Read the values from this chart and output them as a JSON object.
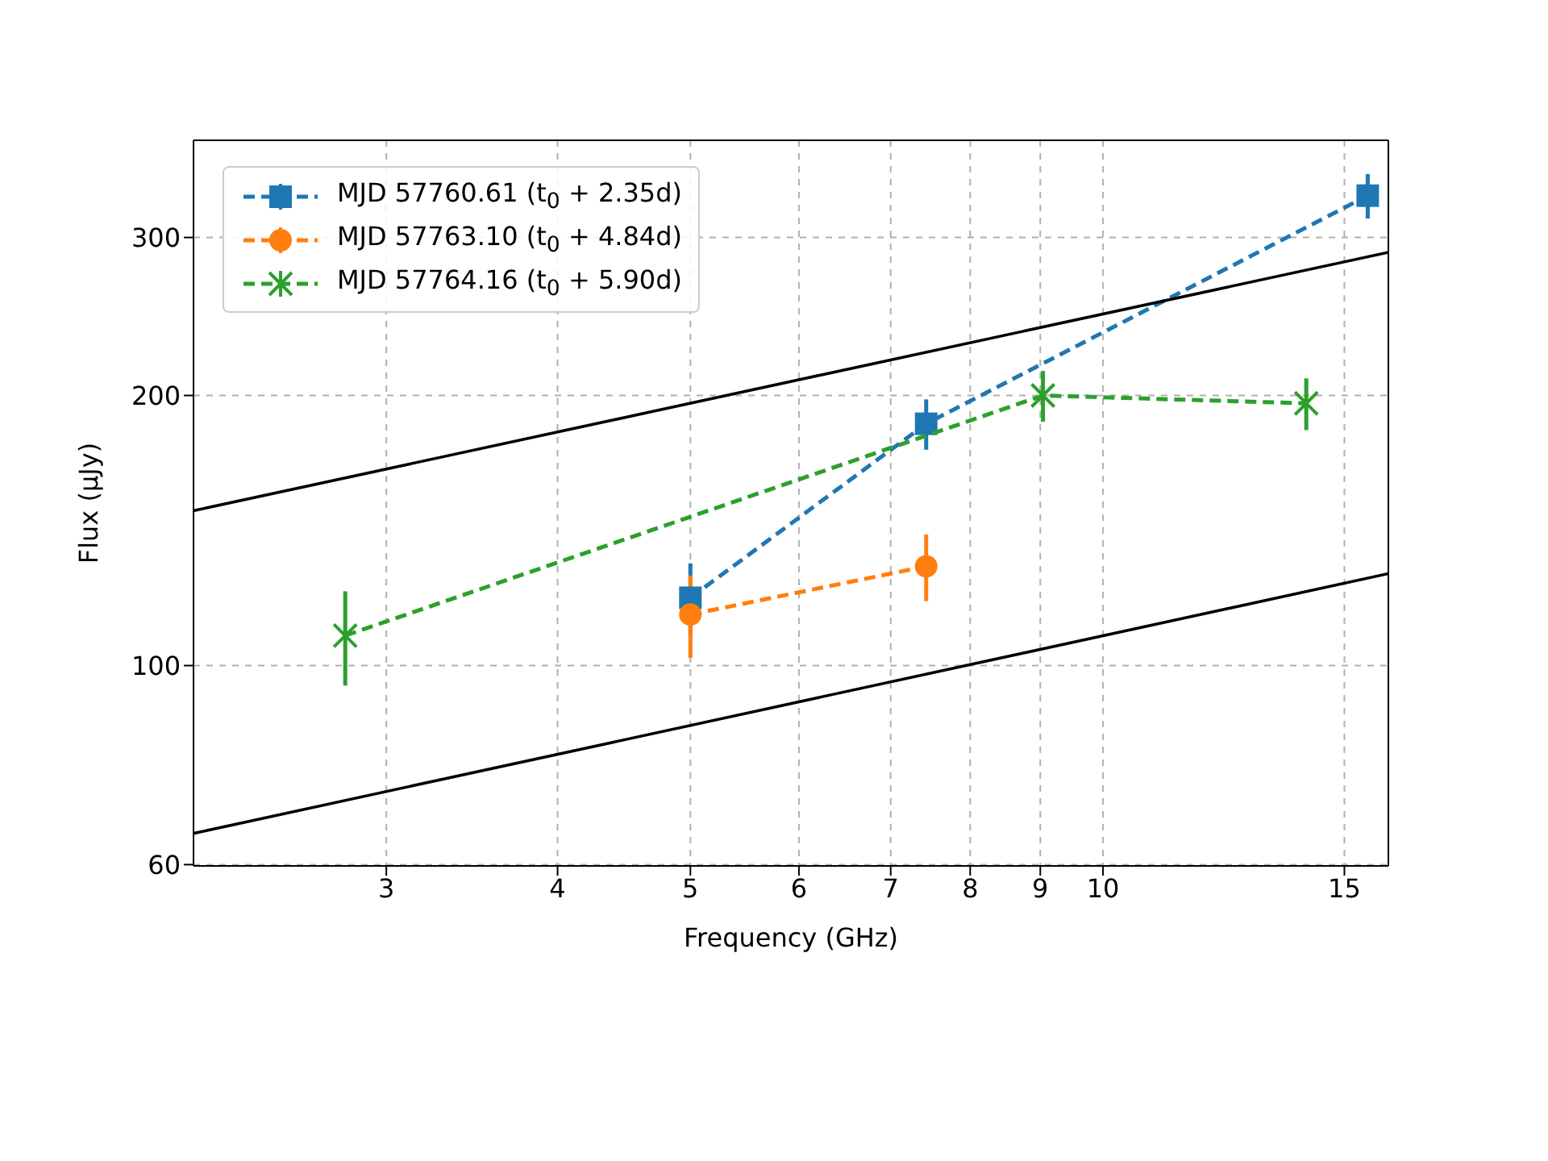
{
  "chart_data": {
    "type": "line",
    "xlabel": "Frequency (GHz)",
    "ylabel": "Flux (μJy)",
    "log": "xy",
    "grid": true,
    "legend": "top left",
    "line_style": "dashed",
    "xlim": [
      2.17,
      16.15
    ],
    "xticks": [
      3,
      4,
      5,
      6,
      7,
      8,
      9,
      10,
      15
    ],
    "ylim": [
      59.8,
      385
    ],
    "yticks": [
      60,
      100,
      200,
      300
    ],
    "series": [
      {
        "name": "MJD 57760.61 (t$_{0}$ + 2.35d)",
        "color": "#1f77b4",
        "marker": "square",
        "x": [
          5,
          7.43,
          15.6
        ],
        "values": [
          119,
          186,
          334
        ],
        "errors": [
          11,
          12,
          19
        ]
      },
      {
        "name": "MJD 57763.10 (t$_{0}$ + 4.84d)",
        "color": "#ff7f0e",
        "marker": "circle",
        "x": [
          5,
          7.43
        ],
        "values": [
          114,
          129
        ],
        "errors": [
          12,
          11
        ]
      },
      {
        "name": "MJD 57764.16 (t$_{0}$ + 5.90d)",
        "color": "#2ca02c",
        "marker": "cross",
        "x": [
          2.8,
          9.04,
          14.07
        ],
        "values": [
          108,
          200,
          196
        ],
        "errors": [
          13,
          13,
          13
        ]
      },
      {
        "type": "line",
        "color": "#000000",
        "marker": "none",
        "line_style": "solid",
        "x": [
          2.17,
          16.15
        ],
        "values": [
          148.8,
          288.8
        ]
      },
      {
        "type": "line",
        "color": "#000000",
        "marker": "none",
        "line_style": "solid",
        "x": [
          2.17,
          16.15
        ],
        "values": [
          65,
          126.6
        ]
      }
    ]
  }
}
